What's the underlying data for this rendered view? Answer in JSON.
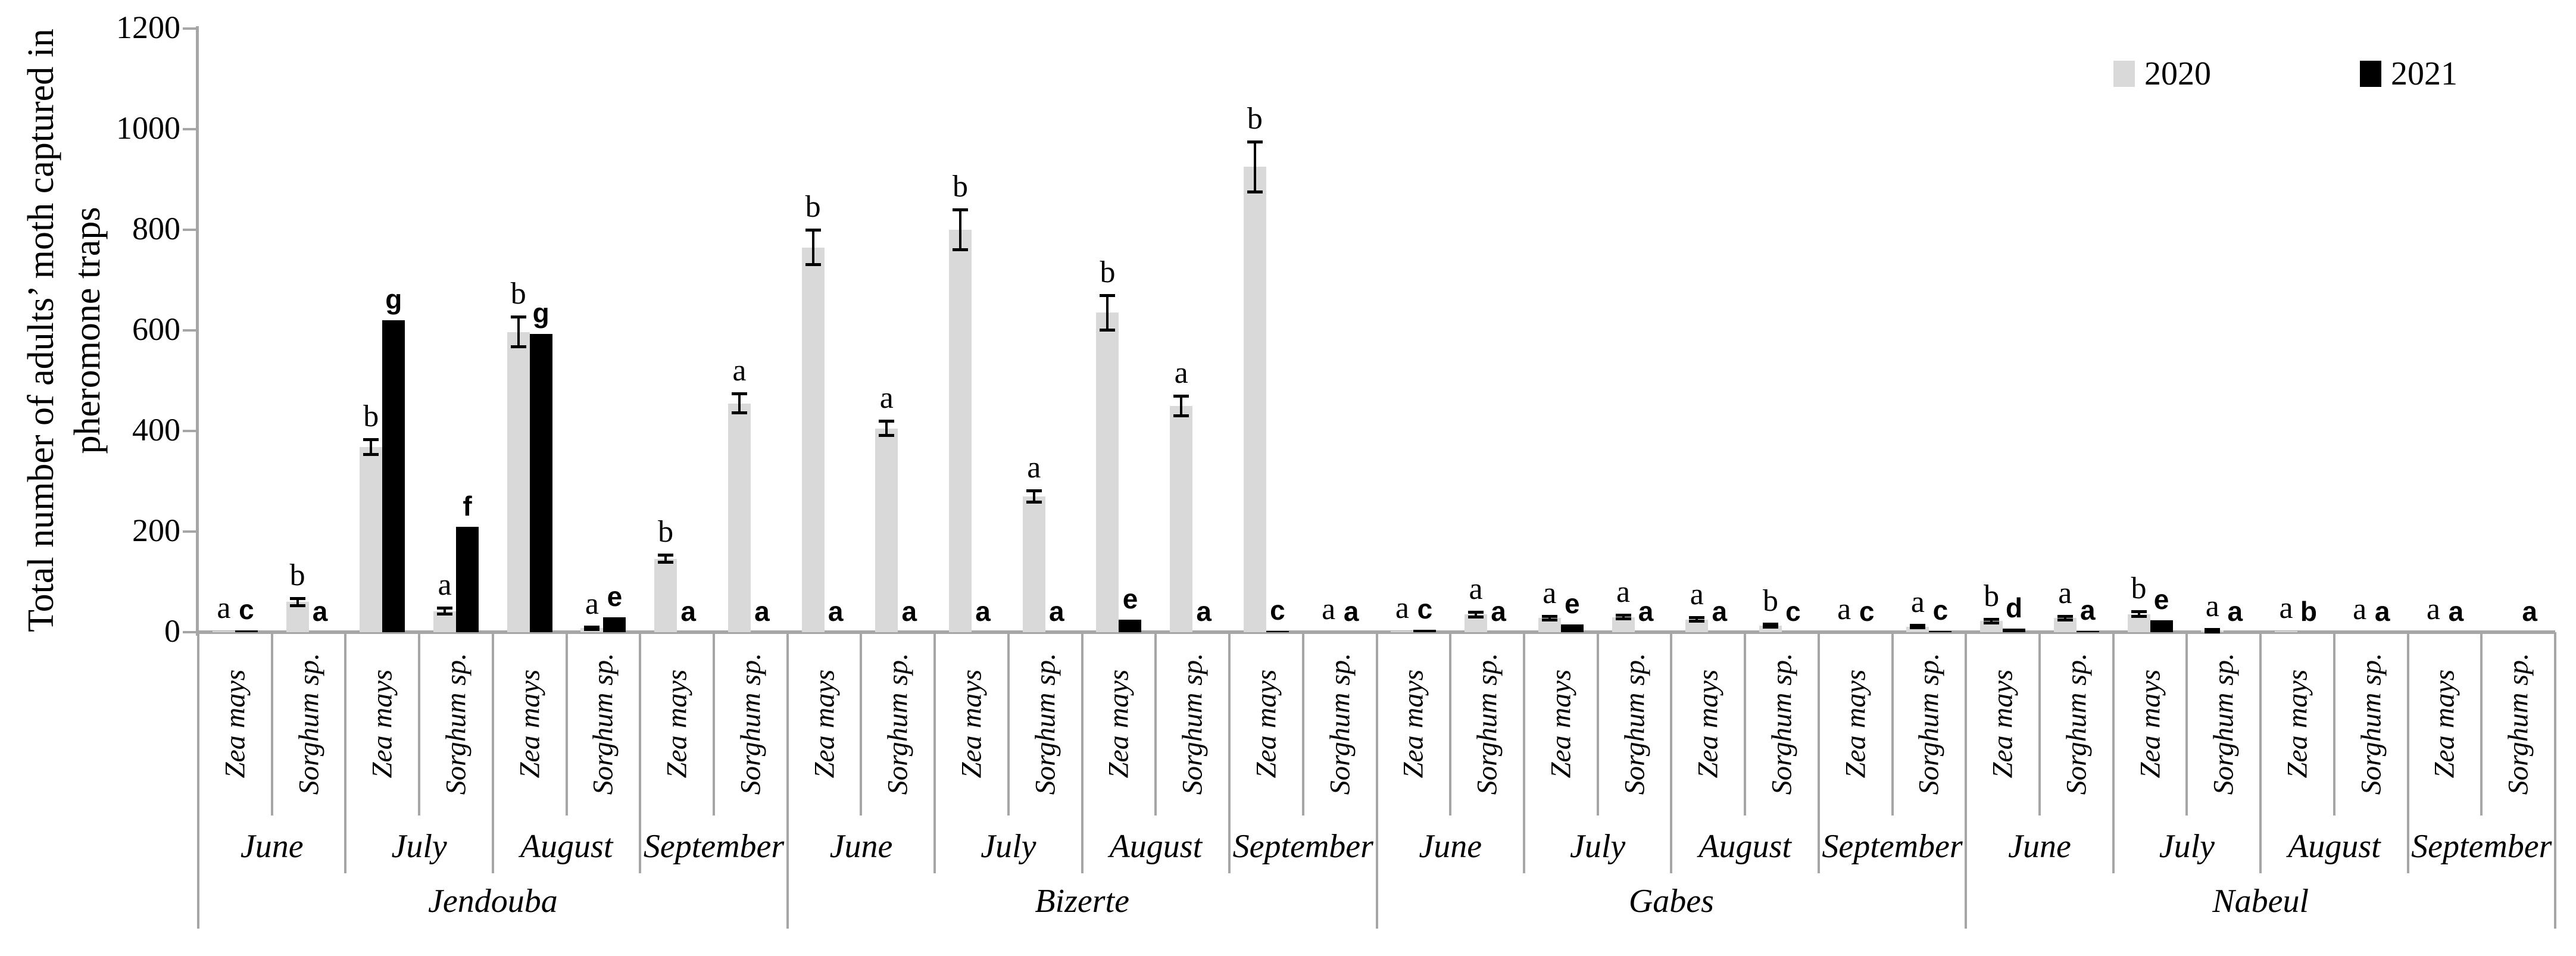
{
  "chart_data": {
    "type": "bar",
    "ylabel_lines": [
      "Total number of adults’ moth captured in",
      "pheromone traps"
    ],
    "ylim": [
      0,
      1200
    ],
    "yticks": [
      0,
      200,
      400,
      600,
      800,
      1000,
      1200
    ],
    "grid": false,
    "legend": {
      "position": "top-right",
      "series": [
        {
          "name": "2020",
          "color": "#d9d9d9"
        },
        {
          "name": "2021",
          "color": "#000000"
        }
      ]
    },
    "locations": [
      {
        "name": "Jendouba",
        "months": [
          {
            "name": "June",
            "crops": [
              {
                "name": "Zea mays",
                "v2020": 2,
                "e2020": 0,
                "l2020": "a",
                "v2021": 3,
                "l2021": "c"
              },
              {
                "name": "Sorghum sp.",
                "v2020": 60,
                "e2020": 8,
                "l2020": "b",
                "v2021": 0,
                "l2021": "a"
              }
            ]
          },
          {
            "name": "July",
            "crops": [
              {
                "name": "Zea mays",
                "v2020": 368,
                "e2020": 15,
                "l2020": "b",
                "v2021": 620,
                "l2021": "g"
              },
              {
                "name": "Sorghum sp.",
                "v2020": 42,
                "e2020": 6,
                "l2020": "a",
                "v2021": 210,
                "l2021": "f"
              }
            ]
          },
          {
            "name": "August",
            "crops": [
              {
                "name": "Zea mays",
                "v2020": 597,
                "e2020": 30,
                "l2020": "b",
                "v2021": 593,
                "l2021": "g"
              },
              {
                "name": "Sorghum sp.",
                "v2020": 8,
                "e2020": 3,
                "l2020": "a",
                "v2021": 30,
                "l2021": "e"
              }
            ]
          },
          {
            "name": "September",
            "crops": [
              {
                "name": "Zea mays",
                "v2020": 146,
                "e2020": 8,
                "l2020": "b",
                "v2021": 0,
                "l2021": "a"
              },
              {
                "name": "Sorghum sp.",
                "v2020": 455,
                "e2020": 20,
                "l2020": "a",
                "v2021": 0,
                "l2021": "a"
              }
            ]
          }
        ]
      },
      {
        "name": "Bizerte",
        "months": [
          {
            "name": "June",
            "crops": [
              {
                "name": "Zea mays",
                "v2020": 765,
                "e2020": 35,
                "l2020": "b",
                "v2021": 0,
                "l2021": "a"
              },
              {
                "name": "Sorghum sp.",
                "v2020": 405,
                "e2020": 15,
                "l2020": "a",
                "v2021": 0,
                "l2021": "a"
              }
            ]
          },
          {
            "name": "July",
            "crops": [
              {
                "name": "Zea mays",
                "v2020": 800,
                "e2020": 40,
                "l2020": "b",
                "v2021": 0,
                "l2021": "a"
              },
              {
                "name": "Sorghum sp.",
                "v2020": 270,
                "e2020": 12,
                "l2020": "a",
                "v2021": 0,
                "l2021": "a"
              }
            ]
          },
          {
            "name": "August",
            "crops": [
              {
                "name": "Zea mays",
                "v2020": 635,
                "e2020": 35,
                "l2020": "b",
                "v2021": 25,
                "l2021": "e"
              },
              {
                "name": "Sorghum sp.",
                "v2020": 450,
                "e2020": 20,
                "l2020": "a",
                "v2021": 0,
                "l2021": "a"
              }
            ]
          },
          {
            "name": "September",
            "crops": [
              {
                "name": "Zea mays",
                "v2020": 925,
                "e2020": 50,
                "l2020": "b",
                "v2021": 2,
                "l2021": "c"
              },
              {
                "name": "Sorghum sp.",
                "v2020": 0,
                "e2020": 0,
                "l2020": "a",
                "v2021": 0,
                "l2021": "a"
              }
            ]
          }
        ]
      },
      {
        "name": "Gabes",
        "months": [
          {
            "name": "June",
            "crops": [
              {
                "name": "Zea mays",
                "v2020": 2,
                "e2020": 0,
                "l2020": "a",
                "v2021": 5,
                "l2021": "c"
              },
              {
                "name": "Sorghum sp.",
                "v2020": 35,
                "e2020": 5,
                "l2020": "a",
                "v2021": 0,
                "l2021": "a"
              }
            ]
          },
          {
            "name": "July",
            "crops": [
              {
                "name": "Zea mays",
                "v2020": 28,
                "e2020": 4,
                "l2020": "a",
                "v2021": 15,
                "l2021": "e"
              },
              {
                "name": "Sorghum sp.",
                "v2020": 30,
                "e2020": 4,
                "l2020": "a",
                "v2021": 0,
                "l2021": "a"
              }
            ]
          },
          {
            "name": "August",
            "crops": [
              {
                "name": "Zea mays",
                "v2020": 25,
                "e2020": 4,
                "l2020": "a",
                "v2021": 0,
                "l2021": "a"
              },
              {
                "name": "Sorghum sp.",
                "v2020": 13,
                "e2020": 3,
                "l2020": "b",
                "v2021": 0,
                "l2021": "c"
              }
            ]
          },
          {
            "name": "September",
            "crops": [
              {
                "name": "Zea mays",
                "v2020": 0,
                "e2020": 0,
                "l2020": "a",
                "v2021": 0,
                "l2021": "c"
              },
              {
                "name": "Sorghum sp.",
                "v2020": 11,
                "e2020": 2,
                "l2020": "a",
                "v2021": 2,
                "l2021": "c"
              }
            ]
          }
        ]
      },
      {
        "name": "Nabeul",
        "months": [
          {
            "name": "June",
            "crops": [
              {
                "name": "Zea mays",
                "v2020": 22,
                "e2020": 4,
                "l2020": "b",
                "v2021": 7,
                "l2021": "d"
              },
              {
                "name": "Sorghum sp.",
                "v2020": 28,
                "e2020": 4,
                "l2020": "a",
                "v2021": 2,
                "l2021": "a"
              }
            ]
          },
          {
            "name": "July",
            "crops": [
              {
                "name": "Zea mays",
                "v2020": 36,
                "e2020": 5,
                "l2020": "b",
                "v2021": 24,
                "l2021": "e"
              },
              {
                "name": "Sorghum sp.",
                "v2020": 3,
                "e2020": 2,
                "l2020": "a",
                "v2021": 0,
                "l2021": "a"
              }
            ]
          },
          {
            "name": "August",
            "crops": [
              {
                "name": "Zea mays",
                "v2020": 2,
                "e2020": 0,
                "l2020": "a",
                "v2021": 0,
                "l2021": "b"
              },
              {
                "name": "Sorghum sp.",
                "v2020": 0,
                "e2020": 0,
                "l2020": "a",
                "v2021": 0,
                "l2021": "a"
              }
            ]
          },
          {
            "name": "September",
            "crops": [
              {
                "name": "Zea mays",
                "v2020": 0,
                "e2020": 0,
                "l2020": "a",
                "v2021": 0,
                "l2021": "a"
              },
              {
                "name": "Sorghum sp.",
                "v2020": 0,
                "e2020": 0,
                "l2020": "",
                "v2021": 0,
                "l2021": "a"
              }
            ]
          }
        ]
      }
    ]
  }
}
